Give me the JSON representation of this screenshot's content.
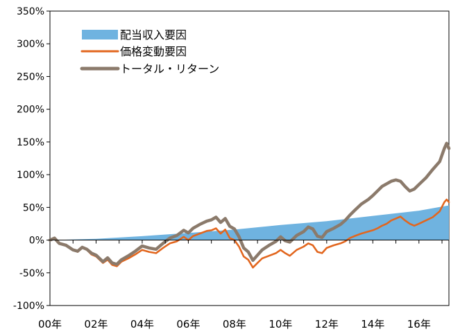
{
  "chart_data": {
    "type": "line",
    "title": "",
    "xlabel": "",
    "ylabel": "",
    "x_tick_labels": [
      "00年",
      "02年",
      "04年",
      "06年",
      "08年",
      "10年",
      "12年",
      "14年",
      "16年"
    ],
    "y_tick_labels": [
      "350%",
      "300%",
      "250%",
      "200%",
      "150%",
      "100%",
      "50%",
      "0%",
      "-50%",
      "-100%"
    ],
    "ylim": [
      -100,
      350
    ],
    "xlim": [
      2000,
      2017.3
    ],
    "grid": false,
    "legend_placement": "top-left",
    "series": [
      {
        "name": "配当収入要因",
        "kind": "area",
        "color": "#6fb3e0",
        "points": [
          [
            2000,
            0
          ],
          [
            2002,
            2
          ],
          [
            2004,
            6
          ],
          [
            2006,
            11
          ],
          [
            2008,
            16
          ],
          [
            2010,
            23
          ],
          [
            2012,
            29
          ],
          [
            2014,
            37
          ],
          [
            2016,
            45
          ],
          [
            2017.3,
            53
          ]
        ]
      },
      {
        "name": "価格変動要因",
        "kind": "line",
        "color": "#e2661e",
        "points": [
          [
            2000,
            0
          ],
          [
            2000.2,
            3
          ],
          [
            2000.4,
            -5
          ],
          [
            2000.7,
            -8
          ],
          [
            2001,
            -15
          ],
          [
            2001.2,
            -18
          ],
          [
            2001.4,
            -12
          ],
          [
            2001.6,
            -15
          ],
          [
            2001.8,
            -22
          ],
          [
            2002,
            -25
          ],
          [
            2002.3,
            -35
          ],
          [
            2002.5,
            -30
          ],
          [
            2002.7,
            -38
          ],
          [
            2002.9,
            -40
          ],
          [
            2003.1,
            -33
          ],
          [
            2003.4,
            -28
          ],
          [
            2003.7,
            -22
          ],
          [
            2004,
            -15
          ],
          [
            2004.3,
            -18
          ],
          [
            2004.6,
            -20
          ],
          [
            2004.9,
            -12
          ],
          [
            2005.2,
            -5
          ],
          [
            2005.5,
            -2
          ],
          [
            2005.8,
            5
          ],
          [
            2006,
            0
          ],
          [
            2006.2,
            6
          ],
          [
            2006.5,
            10
          ],
          [
            2006.8,
            14
          ],
          [
            2007,
            15
          ],
          [
            2007.2,
            18
          ],
          [
            2007.4,
            10
          ],
          [
            2007.6,
            16
          ],
          [
            2007.8,
            3
          ],
          [
            2008,
            0
          ],
          [
            2008.2,
            -10
          ],
          [
            2008.4,
            -25
          ],
          [
            2008.6,
            -30
          ],
          [
            2008.8,
            -42
          ],
          [
            2009,
            -35
          ],
          [
            2009.2,
            -28
          ],
          [
            2009.5,
            -24
          ],
          [
            2009.8,
            -20
          ],
          [
            2010,
            -15
          ],
          [
            2010.2,
            -20
          ],
          [
            2010.4,
            -24
          ],
          [
            2010.7,
            -15
          ],
          [
            2011,
            -10
          ],
          [
            2011.2,
            -5
          ],
          [
            2011.4,
            -8
          ],
          [
            2011.6,
            -18
          ],
          [
            2011.8,
            -20
          ],
          [
            2012,
            -12
          ],
          [
            2012.3,
            -8
          ],
          [
            2012.6,
            -5
          ],
          [
            2012.8,
            -2
          ],
          [
            2013,
            3
          ],
          [
            2013.2,
            6
          ],
          [
            2013.5,
            10
          ],
          [
            2013.8,
            13
          ],
          [
            2014,
            15
          ],
          [
            2014.2,
            18
          ],
          [
            2014.4,
            22
          ],
          [
            2014.6,
            25
          ],
          [
            2014.8,
            30
          ],
          [
            2015,
            33
          ],
          [
            2015.2,
            36
          ],
          [
            2015.4,
            30
          ],
          [
            2015.6,
            25
          ],
          [
            2015.8,
            22
          ],
          [
            2016,
            25
          ],
          [
            2016.3,
            30
          ],
          [
            2016.6,
            35
          ],
          [
            2016.9,
            44
          ],
          [
            2017.1,
            58
          ],
          [
            2017.2,
            62
          ],
          [
            2017.3,
            58
          ]
        ]
      },
      {
        "name": "トータル・リターン",
        "kind": "line",
        "color": "#8b7a6b",
        "points": [
          [
            2000,
            0
          ],
          [
            2000.2,
            3
          ],
          [
            2000.4,
            -5
          ],
          [
            2000.7,
            -8
          ],
          [
            2001,
            -15
          ],
          [
            2001.2,
            -17
          ],
          [
            2001.4,
            -11
          ],
          [
            2001.6,
            -14
          ],
          [
            2001.8,
            -20
          ],
          [
            2002,
            -23
          ],
          [
            2002.3,
            -33
          ],
          [
            2002.5,
            -27
          ],
          [
            2002.7,
            -35
          ],
          [
            2002.9,
            -37
          ],
          [
            2003.1,
            -30
          ],
          [
            2003.4,
            -24
          ],
          [
            2003.7,
            -17
          ],
          [
            2004,
            -9
          ],
          [
            2004.3,
            -12
          ],
          [
            2004.6,
            -14
          ],
          [
            2004.9,
            -5
          ],
          [
            2005.2,
            3
          ],
          [
            2005.5,
            7
          ],
          [
            2005.8,
            15
          ],
          [
            2006,
            11
          ],
          [
            2006.2,
            18
          ],
          [
            2006.5,
            24
          ],
          [
            2006.8,
            29
          ],
          [
            2007,
            31
          ],
          [
            2007.2,
            35
          ],
          [
            2007.4,
            27
          ],
          [
            2007.6,
            33
          ],
          [
            2007.8,
            21
          ],
          [
            2008,
            17
          ],
          [
            2008.2,
            5
          ],
          [
            2008.4,
            -12
          ],
          [
            2008.6,
            -18
          ],
          [
            2008.8,
            -31
          ],
          [
            2009,
            -23
          ],
          [
            2009.2,
            -15
          ],
          [
            2009.5,
            -8
          ],
          [
            2009.8,
            -2
          ],
          [
            2010,
            5
          ],
          [
            2010.2,
            -1
          ],
          [
            2010.4,
            -3
          ],
          [
            2010.7,
            7
          ],
          [
            2011,
            13
          ],
          [
            2011.2,
            20
          ],
          [
            2011.4,
            17
          ],
          [
            2011.6,
            6
          ],
          [
            2011.8,
            4
          ],
          [
            2012,
            13
          ],
          [
            2012.3,
            18
          ],
          [
            2012.6,
            24
          ],
          [
            2012.8,
            30
          ],
          [
            2013,
            38
          ],
          [
            2013.2,
            45
          ],
          [
            2013.5,
            55
          ],
          [
            2013.8,
            62
          ],
          [
            2014,
            68
          ],
          [
            2014.2,
            75
          ],
          [
            2014.4,
            82
          ],
          [
            2014.6,
            86
          ],
          [
            2014.8,
            90
          ],
          [
            2015,
            92
          ],
          [
            2015.2,
            90
          ],
          [
            2015.4,
            82
          ],
          [
            2015.6,
            75
          ],
          [
            2015.8,
            78
          ],
          [
            2016,
            85
          ],
          [
            2016.3,
            95
          ],
          [
            2016.6,
            108
          ],
          [
            2016.9,
            120
          ],
          [
            2017.1,
            140
          ],
          [
            2017.2,
            148
          ],
          [
            2017.3,
            140
          ]
        ]
      }
    ]
  }
}
